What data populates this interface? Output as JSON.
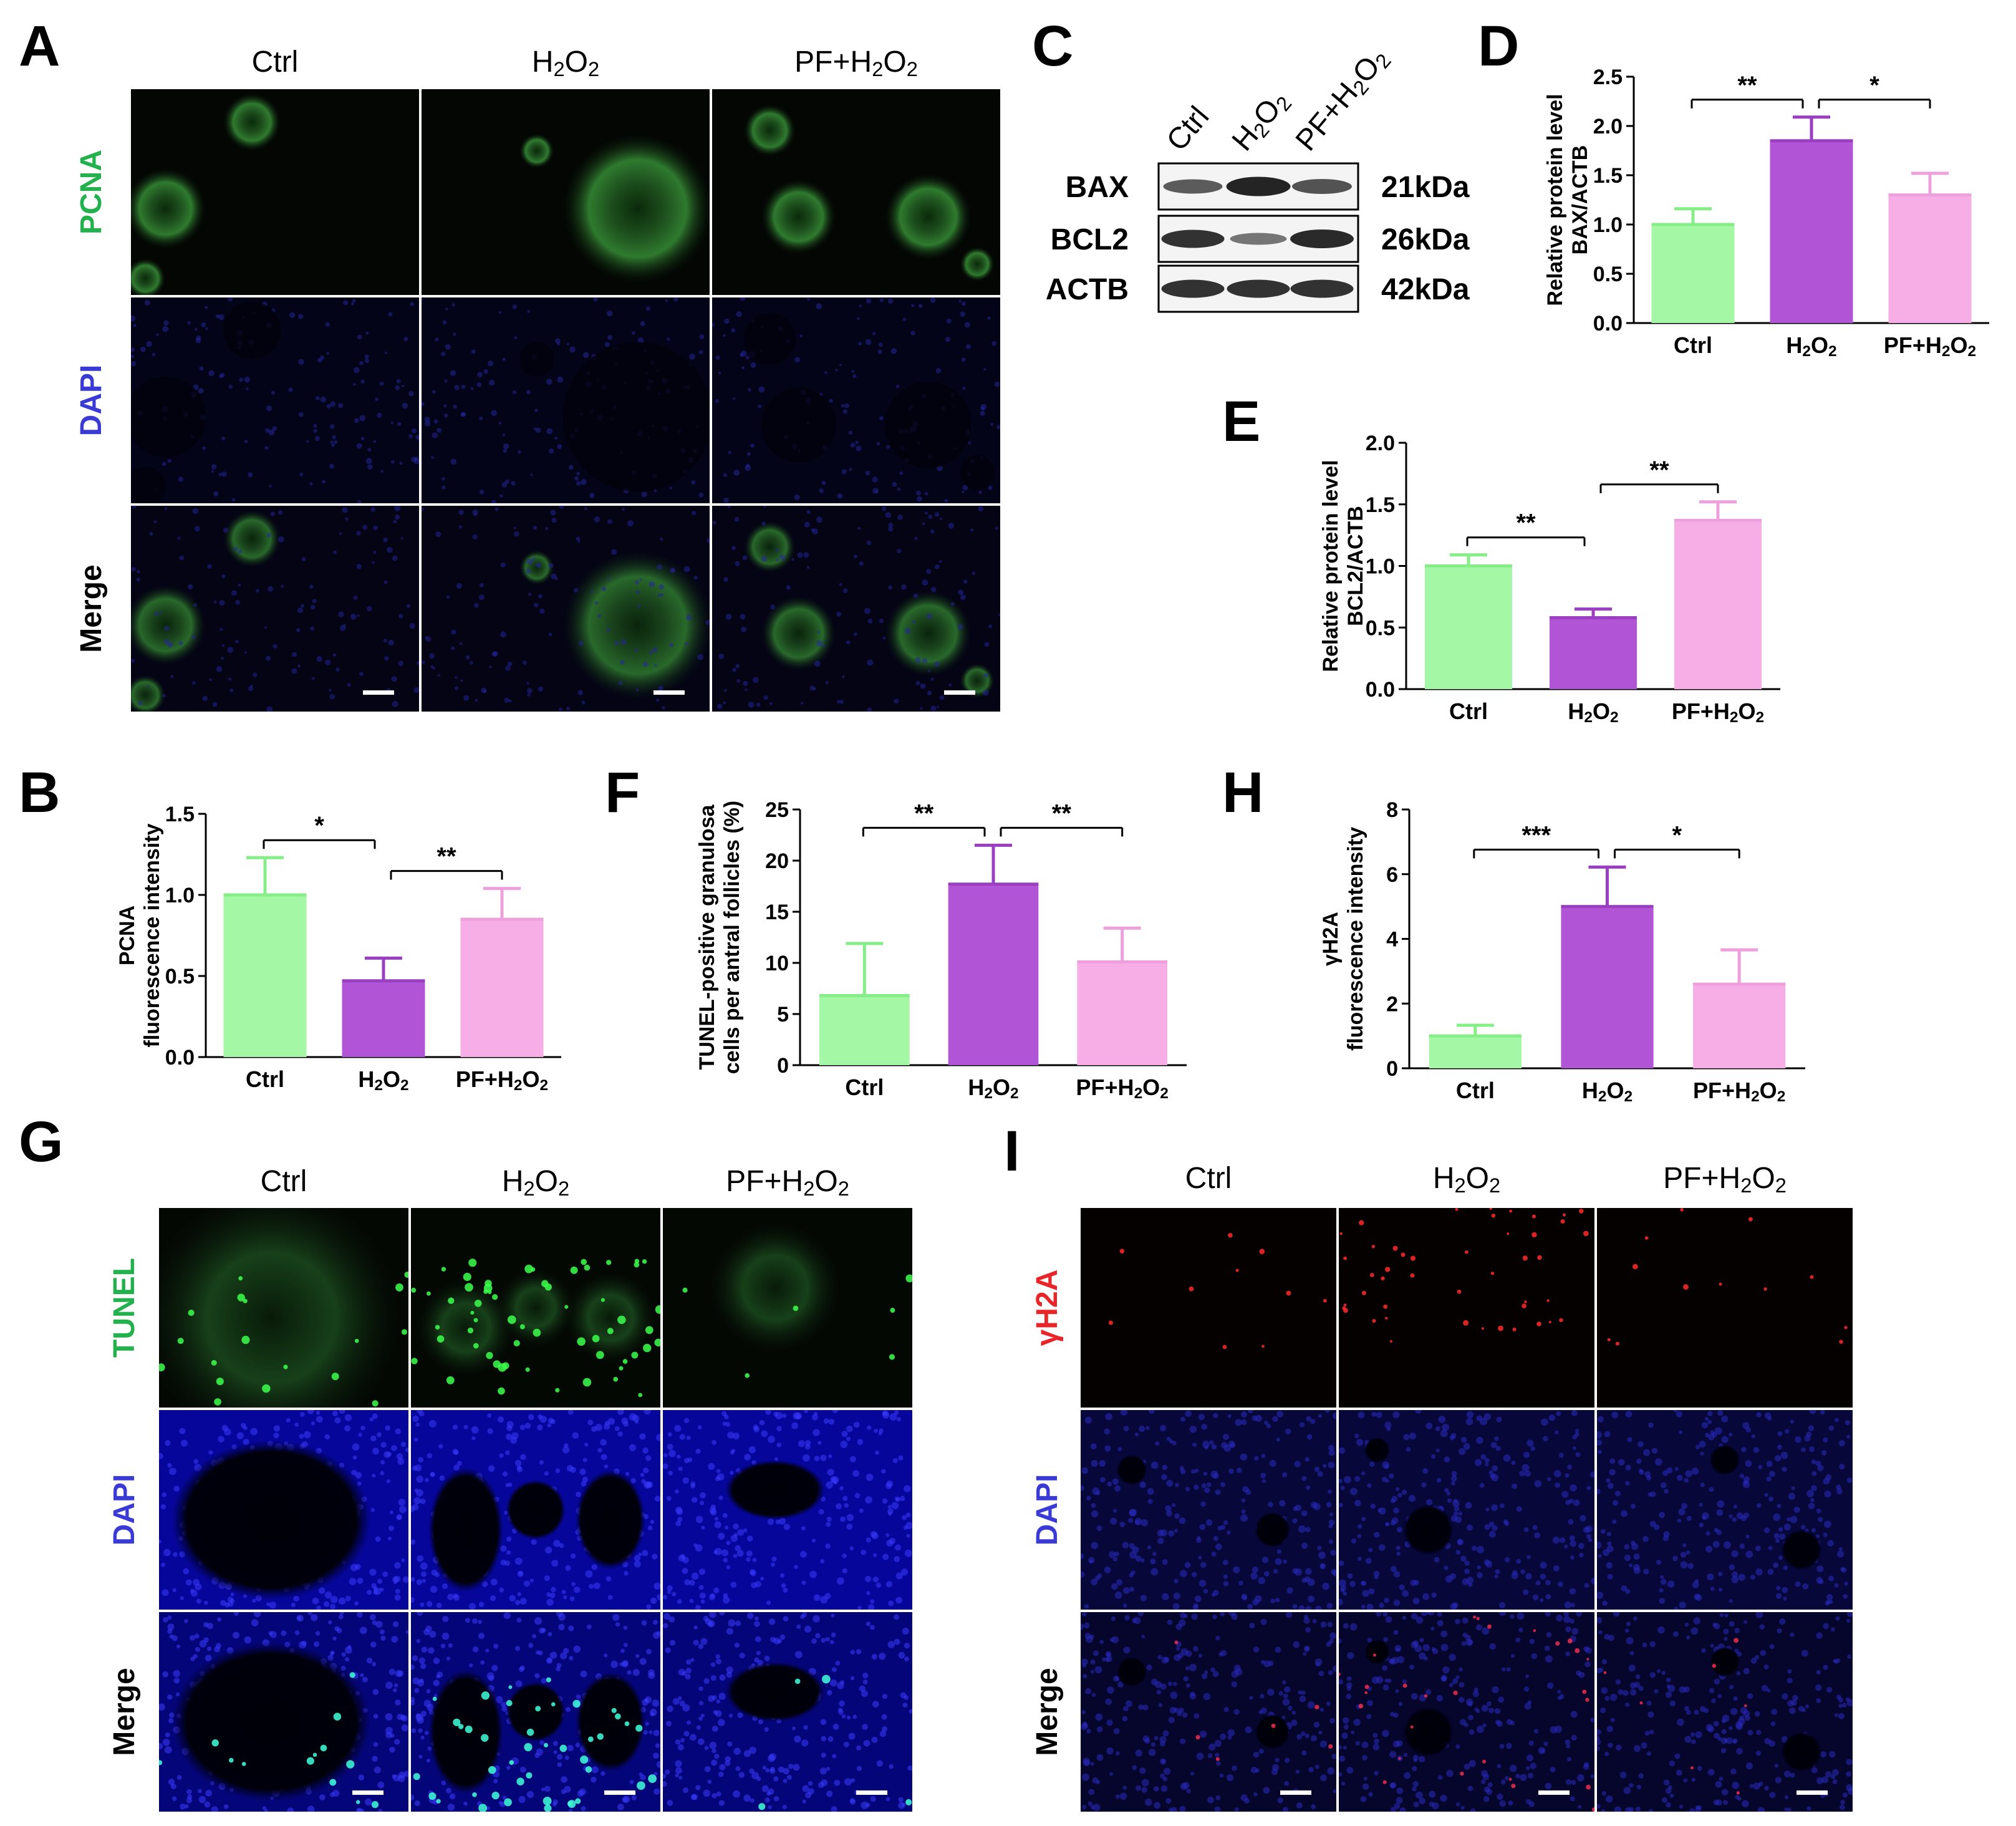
{
  "panels": {
    "A": {
      "letter": "A",
      "columns": [
        "Ctrl",
        "H2O2",
        "PF+H2O2"
      ],
      "rows": [
        {
          "label": "PCNA",
          "color": "#22b14c"
        },
        {
          "label": "DAPI",
          "color": "#3a3ad6"
        },
        {
          "label": "Merge",
          "color": "#000000"
        }
      ]
    },
    "B": {
      "letter": "B"
    },
    "C": {
      "letter": "C",
      "lanes": [
        "Ctrl",
        "H2O2",
        "PF+H2O2"
      ],
      "bands": [
        {
          "name": "BAX",
          "size": "21kDa"
        },
        {
          "name": "BCL2",
          "size": "26kDa"
        },
        {
          "name": "ACTB",
          "size": "42kDa"
        }
      ]
    },
    "D": {
      "letter": "D"
    },
    "E": {
      "letter": "E"
    },
    "F": {
      "letter": "F"
    },
    "G": {
      "letter": "G",
      "columns": [
        "Ctrl",
        "H2O2",
        "PF+H2O2"
      ],
      "rows": [
        {
          "label": "TUNEL",
          "color": "#22b14c"
        },
        {
          "label": "DAPI",
          "color": "#3a3ad6"
        },
        {
          "label": "Merge",
          "color": "#000000"
        }
      ]
    },
    "H": {
      "letter": "H"
    },
    "I": {
      "letter": "I",
      "columns": [
        "Ctrl",
        "H2O2",
        "PF+H2O2"
      ],
      "rows": [
        {
          "label": "γH2A",
          "color": "#e8262a"
        },
        {
          "label": "DAPI",
          "color": "#3a3ad6"
        },
        {
          "label": "Merge",
          "color": "#000000"
        }
      ]
    }
  },
  "chart_data": [
    {
      "panel": "B",
      "type": "bar",
      "ylabel": [
        "PCNA",
        "fluorescence intensity"
      ],
      "categories": [
        "Ctrl",
        "H2O2",
        "PF+H2O2"
      ],
      "values": [
        1.0,
        0.47,
        0.85
      ],
      "errors": [
        0.23,
        0.14,
        0.19
      ],
      "ylim": [
        0,
        1.5
      ],
      "yticks": [
        "0.0",
        "0.5",
        "1.0",
        "1.5"
      ],
      "colors": [
        "#a4f7a4",
        "#b254d6",
        "#f7aee6"
      ],
      "edge_colors": [
        "#86ee86",
        "#9a3ec2",
        "#eea0dc"
      ],
      "significance": [
        {
          "from": 0,
          "to": 1,
          "label": "*"
        },
        {
          "from": 1,
          "to": 2,
          "label": "**"
        }
      ]
    },
    {
      "panel": "D",
      "type": "bar",
      "ylabel": [
        "Relative protein level",
        "BAX/ACTB"
      ],
      "categories": [
        "Ctrl",
        "H2O2",
        "PF+H2O2"
      ],
      "values": [
        1.0,
        1.85,
        1.3
      ],
      "errors": [
        0.16,
        0.24,
        0.22
      ],
      "ylim": [
        0,
        2.5
      ],
      "yticks": [
        "0.0",
        "0.5",
        "1.0",
        "1.5",
        "2.0",
        "2.5"
      ],
      "colors": [
        "#a4f7a4",
        "#b254d6",
        "#f7aee6"
      ],
      "edge_colors": [
        "#86ee86",
        "#9a3ec2",
        "#eea0dc"
      ],
      "significance": [
        {
          "from": 0,
          "to": 1,
          "label": "**"
        },
        {
          "from": 1,
          "to": 2,
          "label": "*"
        }
      ]
    },
    {
      "panel": "E",
      "type": "bar",
      "ylabel": [
        "Relative protein level",
        "BCL2/ACTB"
      ],
      "categories": [
        "Ctrl",
        "H2O2",
        "PF+H2O2"
      ],
      "values": [
        1.0,
        0.58,
        1.37
      ],
      "errors": [
        0.09,
        0.07,
        0.15
      ],
      "ylim": [
        0,
        2.0
      ],
      "yticks": [
        "0.0",
        "0.5",
        "1.0",
        "1.5",
        "2.0"
      ],
      "colors": [
        "#a4f7a4",
        "#b254d6",
        "#f7aee6"
      ],
      "edge_colors": [
        "#86ee86",
        "#9a3ec2",
        "#eea0dc"
      ],
      "significance": [
        {
          "from": 0,
          "to": 1,
          "label": "**"
        },
        {
          "from": 1,
          "to": 2,
          "label": "**"
        }
      ]
    },
    {
      "panel": "F",
      "type": "bar",
      "ylabel": [
        "TUNEL-positive granulosa",
        "cells per antral follicles (%)"
      ],
      "categories": [
        "Ctrl",
        "H2O2",
        "PF+H2O2"
      ],
      "values": [
        6.8,
        17.7,
        10.1
      ],
      "errors": [
        5.1,
        3.8,
        3.3
      ],
      "ylim": [
        0,
        25
      ],
      "yticks": [
        "0",
        "5",
        "10",
        "15",
        "20",
        "25"
      ],
      "colors": [
        "#a4f7a4",
        "#b254d6",
        "#f7aee6"
      ],
      "edge_colors": [
        "#86ee86",
        "#9a3ec2",
        "#eea0dc"
      ],
      "significance": [
        {
          "from": 0,
          "to": 1,
          "label": "**"
        },
        {
          "from": 1,
          "to": 2,
          "label": "**"
        }
      ]
    },
    {
      "panel": "H",
      "type": "bar",
      "ylabel": [
        "γH2A",
        "fluorescence intensity"
      ],
      "categories": [
        "Ctrl",
        "H2O2",
        "PF+H2O2"
      ],
      "values": [
        1.0,
        5.0,
        2.6
      ],
      "errors": [
        0.33,
        1.22,
        1.06
      ],
      "ylim": [
        0,
        8
      ],
      "yticks": [
        "0",
        "2",
        "4",
        "6",
        "8"
      ],
      "colors": [
        "#a4f7a4",
        "#b254d6",
        "#f7aee6"
      ],
      "edge_colors": [
        "#86ee86",
        "#9a3ec2",
        "#eea0dc"
      ],
      "significance": [
        {
          "from": 0,
          "to": 1,
          "label": "***"
        },
        {
          "from": 1,
          "to": 2,
          "label": "*"
        }
      ]
    }
  ]
}
